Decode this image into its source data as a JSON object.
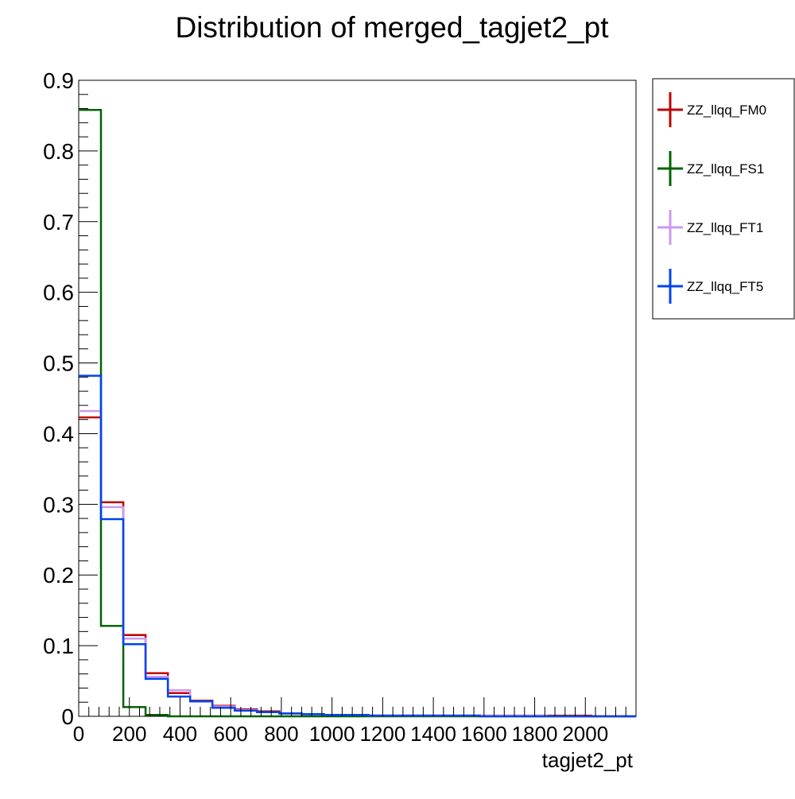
{
  "chart_data": {
    "type": "line",
    "title": "Distribution of merged_tagjet2_pt",
    "xlabel": "tagjet2_pt",
    "ylabel": "",
    "xlim": [
      0,
      2200
    ],
    "ylim": [
      0,
      0.9
    ],
    "grid": false,
    "legend_position": "right",
    "x_ticks": [
      "0",
      "200",
      "400",
      "600",
      "800",
      "1000",
      "1200",
      "1400",
      "1600",
      "1800",
      "2000"
    ],
    "y_ticks": [
      "0",
      "0.1",
      "0.2",
      "0.3",
      "0.4",
      "0.5",
      "0.6",
      "0.7",
      "0.8",
      "0.9"
    ],
    "bin_edges": [
      0,
      88,
      176,
      264,
      352,
      440,
      528,
      616,
      704,
      792,
      880,
      968,
      1056,
      1144,
      1232,
      1320,
      1408,
      1496,
      1584,
      1672,
      1760,
      1848,
      1936,
      2024,
      2112,
      2200
    ],
    "series": [
      {
        "name": "ZZ_llqq_FM0",
        "color": "#c00000",
        "values": [
          0.423,
          0.303,
          0.115,
          0.061,
          0.033,
          0.022,
          0.015,
          0.01,
          0.007,
          0.004,
          0.003,
          0.002,
          0.002,
          0.001,
          0.001,
          0.001,
          0.001,
          0.001,
          0.001,
          0.001,
          0.001,
          0.001,
          0.001,
          0.0,
          0.0
        ]
      },
      {
        "name": "ZZ_llqq_FS1",
        "color": "#006400",
        "values": [
          0.858,
          0.128,
          0.013,
          0.002,
          0.0,
          0.0,
          0.0,
          0.0,
          0.0,
          0.0,
          0.0,
          0.0,
          0.0,
          0.0,
          0.0,
          0.0,
          0.0,
          0.0,
          0.0,
          0.0,
          0.0,
          0.0,
          0.0,
          0.0,
          0.0
        ]
      },
      {
        "name": "ZZ_llqq_FT1",
        "color": "#cc99ee",
        "values": [
          0.432,
          0.296,
          0.11,
          0.056,
          0.037,
          0.021,
          0.014,
          0.009,
          0.006,
          0.004,
          0.003,
          0.002,
          0.002,
          0.001,
          0.001,
          0.001,
          0.001,
          0.001,
          0.001,
          0.001,
          0.001,
          0.0,
          0.0,
          0.0,
          0.0
        ]
      },
      {
        "name": "ZZ_llqq_FT5",
        "color": "#0044ee",
        "values": [
          0.482,
          0.279,
          0.102,
          0.053,
          0.028,
          0.021,
          0.012,
          0.008,
          0.006,
          0.004,
          0.003,
          0.002,
          0.002,
          0.001,
          0.001,
          0.001,
          0.001,
          0.001,
          0.0,
          0.0,
          0.0,
          0.0,
          0.0,
          0.0,
          0.0
        ]
      }
    ]
  }
}
